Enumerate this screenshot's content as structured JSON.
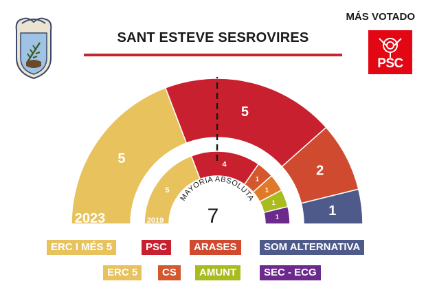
{
  "header": {
    "title": "SANT ESTEVE SESROVIRES",
    "winner_label": "MÁS VOTADO",
    "winner_logo_text": "PSC",
    "rule_color": "#c0282d"
  },
  "chart_data": [
    {
      "type": "half-donut",
      "year_label": "2023",
      "series": [
        {
          "name": "ERC I MÉS 5",
          "value": 5,
          "color": "#e8c25d"
        },
        {
          "name": "PSC",
          "value": 5,
          "color": "#c8202f"
        },
        {
          "name": "ARASES",
          "value": 2,
          "color": "#cf4a2f"
        },
        {
          "name": "SOM ALTERNATIVA",
          "value": 1,
          "color": "#4d5a8a"
        }
      ]
    },
    {
      "type": "half-donut",
      "year_label": "2019",
      "series": [
        {
          "name": "ERC 5",
          "value": 5,
          "color": "#e8c25d"
        },
        {
          "name": "PSC",
          "value": 4,
          "color": "#c8202f"
        },
        {
          "name": "CS",
          "value": 1,
          "color": "#d4572e"
        },
        {
          "name": "CS",
          "value": 1,
          "color": "#e07a2a"
        },
        {
          "name": "AMUNT",
          "value": 1,
          "color": "#a9bb1f"
        },
        {
          "name": "SEC - ECG",
          "value": 1,
          "color": "#6b2a8c"
        }
      ]
    }
  ],
  "majority": {
    "label": "MAYORÍA ABSOLUTA",
    "value": "7"
  },
  "legend": [
    [
      {
        "label": "ERC I MÉS 5",
        "color": "#e8c25d"
      },
      {
        "label": "PSC",
        "color": "#c8202f"
      },
      {
        "label": "ARASES",
        "color": "#cf4a2f"
      },
      {
        "label": "SOM ALTERNATIVA",
        "color": "#4d5a8a"
      }
    ],
    [
      {
        "label": "ERC 5",
        "color": "#e8c25d"
      },
      {
        "label": "CS",
        "color": "#d4572e"
      },
      {
        "label": "AMUNT",
        "color": "#a9bb1f"
      },
      {
        "label": "SEC - ECG",
        "color": "#6b2a8c"
      }
    ]
  ]
}
